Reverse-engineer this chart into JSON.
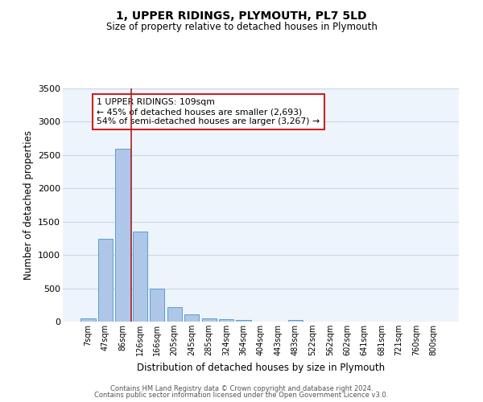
{
  "title": "1, UPPER RIDINGS, PLYMOUTH, PL7 5LD",
  "subtitle": "Size of property relative to detached houses in Plymouth",
  "xlabel": "Distribution of detached houses by size in Plymouth",
  "ylabel": "Number of detached properties",
  "bar_labels": [
    "7sqm",
    "47sqm",
    "86sqm",
    "126sqm",
    "166sqm",
    "205sqm",
    "245sqm",
    "285sqm",
    "324sqm",
    "364sqm",
    "404sqm",
    "443sqm",
    "483sqm",
    "522sqm",
    "562sqm",
    "602sqm",
    "641sqm",
    "681sqm",
    "721sqm",
    "760sqm",
    "800sqm"
  ],
  "bar_values": [
    50,
    1240,
    2590,
    1350,
    500,
    215,
    110,
    50,
    40,
    30,
    0,
    0,
    30,
    0,
    0,
    0,
    0,
    0,
    0,
    0,
    0
  ],
  "bar_color": "#aec6e8",
  "bar_edge_color": "#5a9fd4",
  "grid_color": "#c8d8e8",
  "bg_color": "#eef4fb",
  "vline_pos": 2.5,
  "vline_color": "#aa2222",
  "annotation_text": "1 UPPER RIDINGS: 109sqm\n← 45% of detached houses are smaller (2,693)\n54% of semi-detached houses are larger (3,267) →",
  "annotation_box_color": "#ffffff",
  "annotation_box_edge_color": "#cc2222",
  "ylim": [
    0,
    3500
  ],
  "yticks": [
    0,
    500,
    1000,
    1500,
    2000,
    2500,
    3000,
    3500
  ],
  "footer1": "Contains HM Land Registry data © Crown copyright and database right 2024.",
  "footer2": "Contains public sector information licensed under the Open Government Licence v3.0."
}
